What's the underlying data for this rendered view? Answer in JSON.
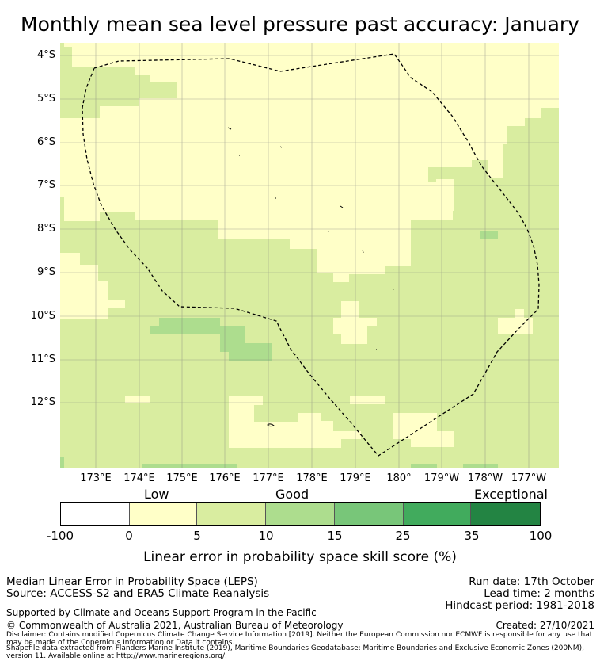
{
  "title": "Monthly mean sea level pressure past accuracy: January",
  "map": {
    "lat_labels": [
      "4°S",
      "5°S",
      "6°S",
      "7°S",
      "8°S",
      "9°S",
      "10°S",
      "11°S",
      "12°S"
    ],
    "lon_labels": [
      "173°E",
      "174°E",
      "175°E",
      "176°E",
      "177°E",
      "178°E",
      "179°E",
      "180°",
      "179°W",
      "178°W",
      "177°W"
    ],
    "colors": {
      "low": "#ffffc8",
      "good": "#d9eda0",
      "better": "#addd8e",
      "water_line": "#000000"
    },
    "region": "Fiji EEZ (dashed outline)"
  },
  "legend": {
    "categories": [
      "Low",
      "Good",
      "Exceptional"
    ],
    "ticks": [
      "-100",
      "0",
      "5",
      "10",
      "15",
      "25",
      "35",
      "100"
    ],
    "colors": [
      "#ffffff",
      "#ffffc8",
      "#d9eda0",
      "#addd8e",
      "#78c679",
      "#41ab5d",
      "#238443"
    ],
    "title": "Linear error in probability space skill score (%)"
  },
  "footer": {
    "left_line1": "Median Linear Error in Probability Space (LEPS)",
    "left_line2": "Source: ACCESS-S2 and ERA5 Climate Reanalysis",
    "right_line1": "Run date: 17th October",
    "right_line2": "Lead time: 2 months",
    "right_line3": "Hindcast period: 1981-2018",
    "support": "Supported by Climate and Oceans Support Program in the Pacific",
    "copyright": "© Commonwealth of Australia 2021, Australian Bureau of Meteorology",
    "created": "Created: 27/10/2021",
    "disclaimer": "Disclaimer: Contains modified Copernicus Climate Change Service Information [2019]. Neither the European Commission nor ECMWF is responsible for any use that may be made of the Copernicus Information or Data it contains.",
    "shapefile": "Shapefile data extracted from Flanders Marine Institute (2019), Maritime Boundaries Geodatabase: Maritime Boundaries and Exclusive Economic Zones (200NM), version 11. Available online at http://www.marineregions.org/."
  }
}
